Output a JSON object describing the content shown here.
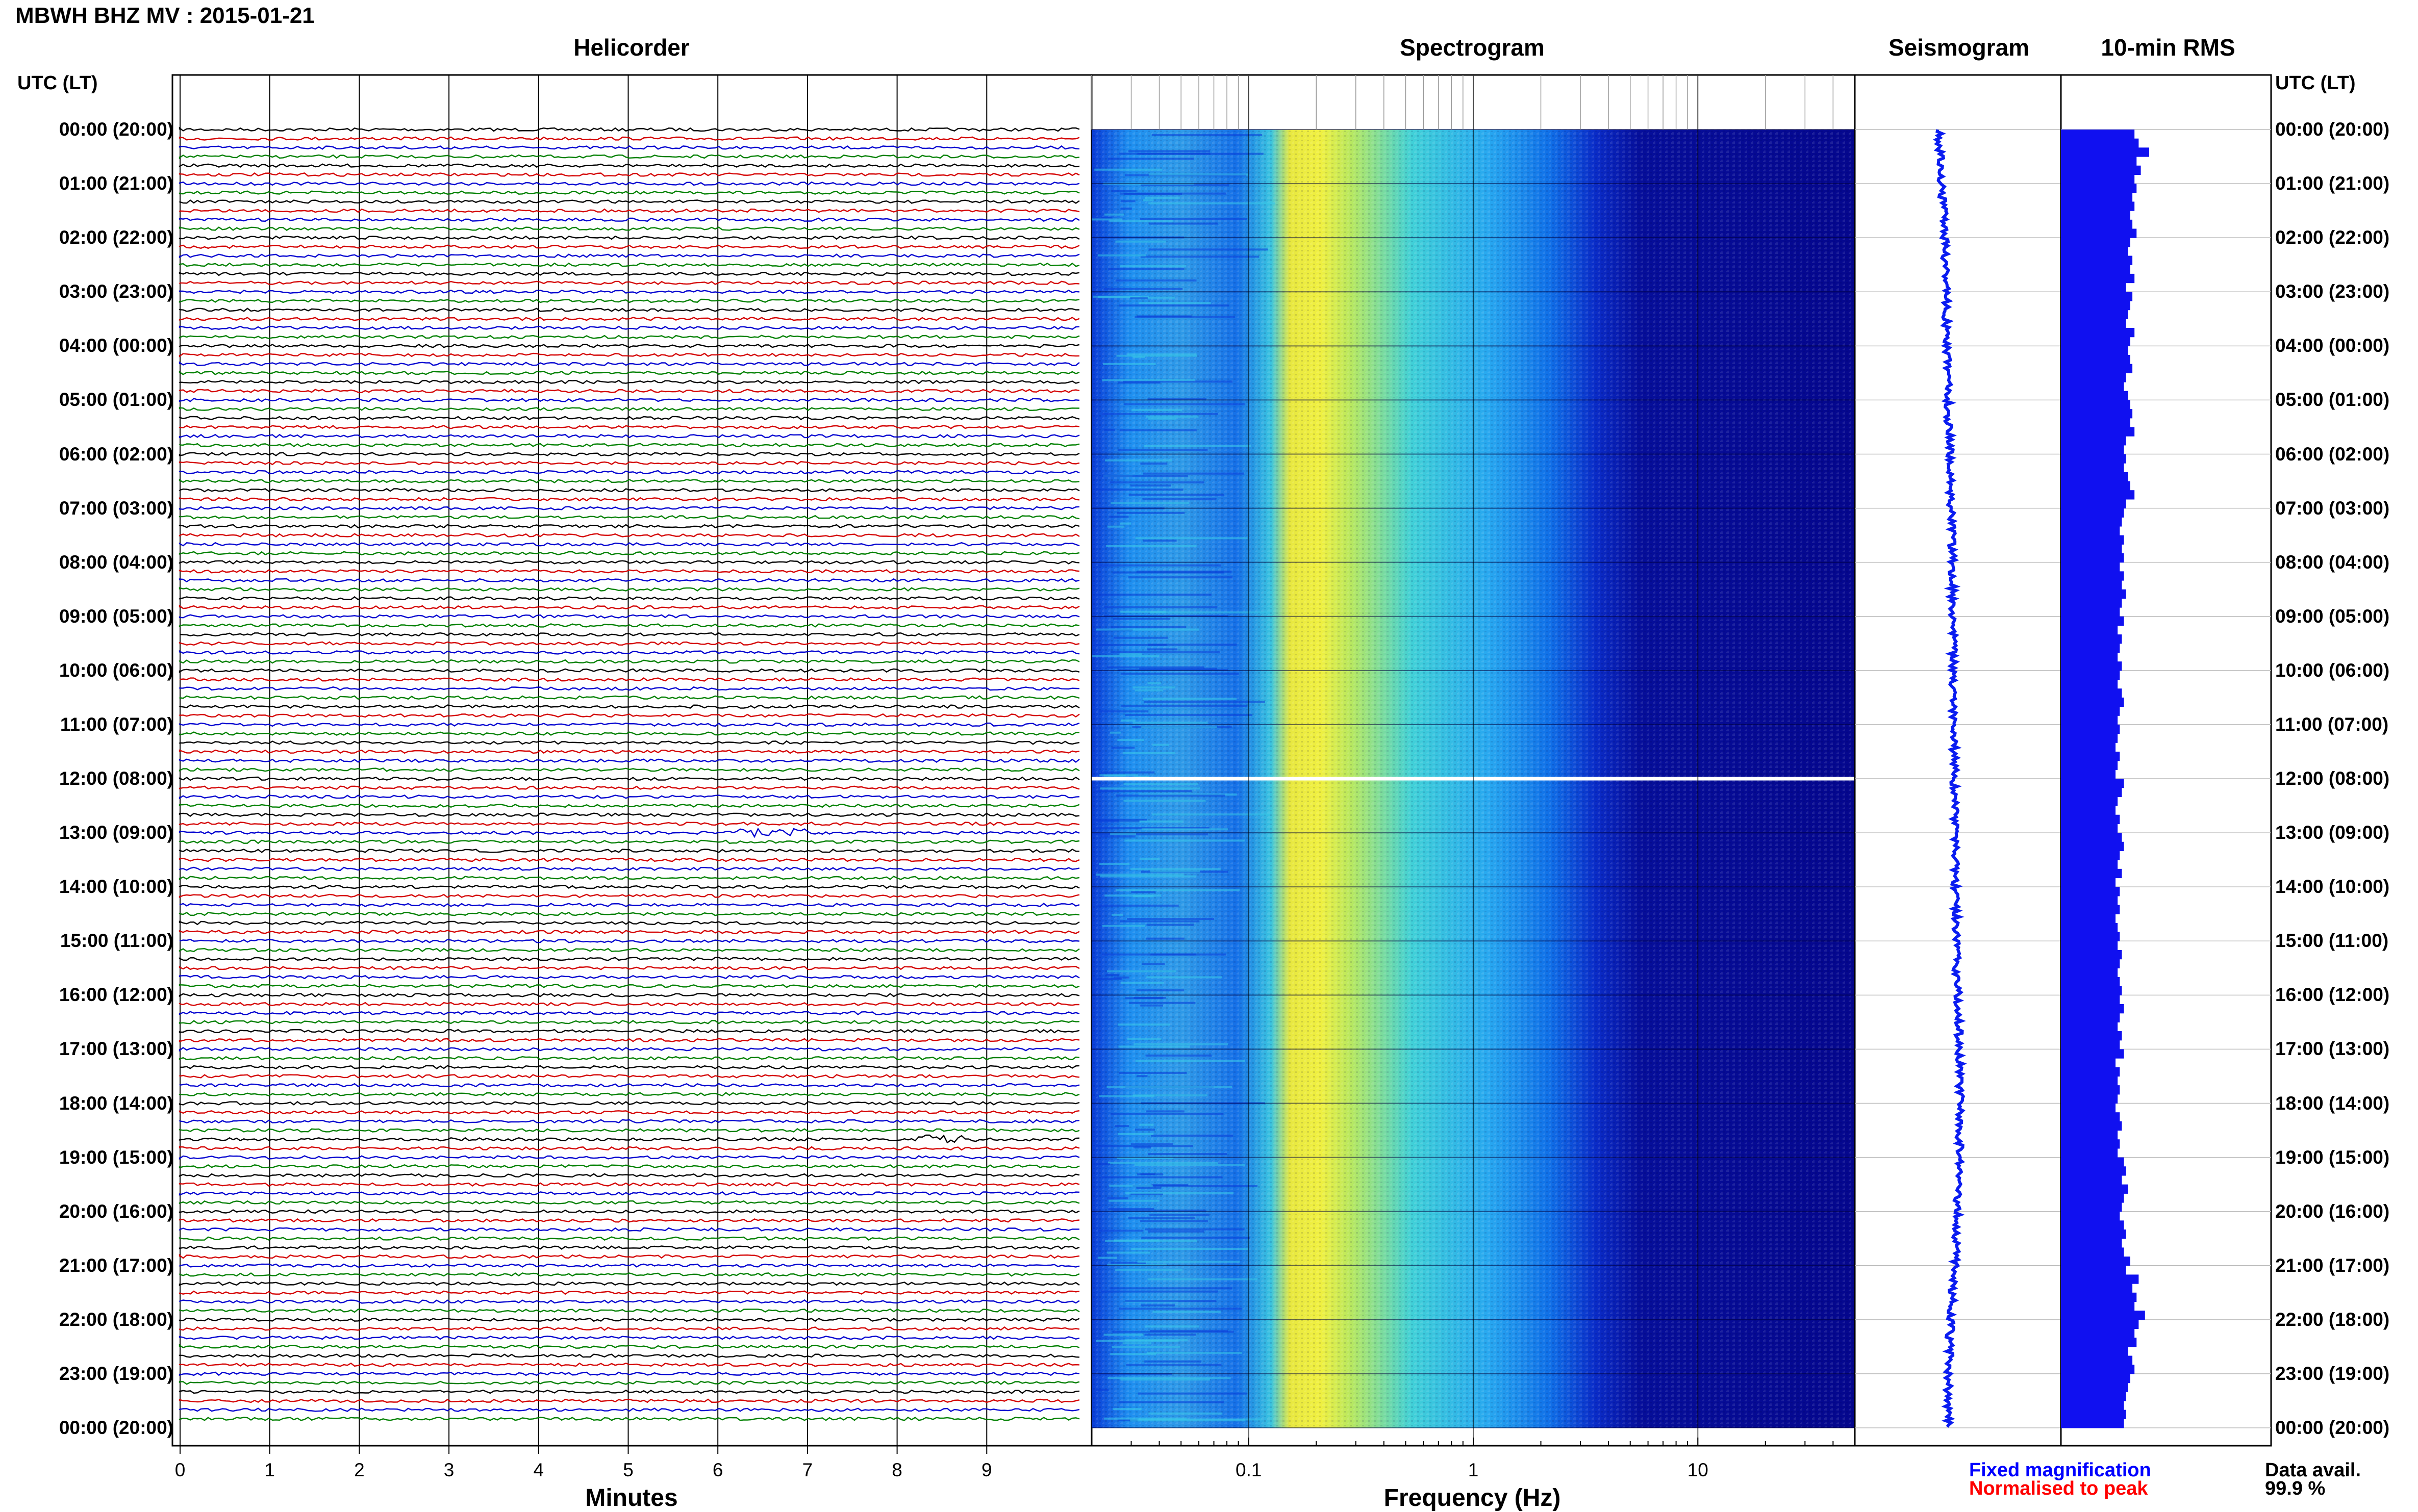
{
  "title": "MBWH BHZ MV : 2015-01-21",
  "panels": {
    "helicorder": "Helicorder",
    "spectrogram": "Spectrogram",
    "seismogram": "Seismogram",
    "rms": "10-min RMS"
  },
  "time_axis_label": "UTC (LT)",
  "time_labels": [
    "00:00 (20:00)",
    "01:00 (21:00)",
    "02:00 (22:00)",
    "03:00 (23:00)",
    "04:00 (00:00)",
    "05:00 (01:00)",
    "06:00 (02:00)",
    "07:00 (03:00)",
    "08:00 (04:00)",
    "09:00 (05:00)",
    "10:00 (06:00)",
    "11:00 (07:00)",
    "12:00 (08:00)",
    "13:00 (09:00)",
    "14:00 (10:00)",
    "15:00 (11:00)",
    "16:00 (12:00)",
    "17:00 (13:00)",
    "18:00 (14:00)",
    "19:00 (15:00)",
    "20:00 (16:00)",
    "21:00 (17:00)",
    "22:00 (18:00)",
    "23:00 (19:00)",
    "00:00 (20:00)"
  ],
  "legend": {
    "fixed": "Fixed magnification",
    "normalised": "Normalised to peak",
    "fixed_color": "#0000ff",
    "normalised_color": "#ff0000"
  },
  "data_availability": {
    "label": "Data avail.",
    "value": "99.9 %"
  },
  "trace_colors": [
    "#000000",
    "#d40000",
    "#0000d0",
    "#008000"
  ],
  "chart_data": [
    {
      "type": "line",
      "title": "Helicorder",
      "xlabel": "Minutes",
      "xticks": [
        "0",
        "1",
        "2",
        "3",
        "4",
        "5",
        "6",
        "7",
        "8",
        "9"
      ],
      "xlim": [
        0,
        10
      ],
      "rows": 144,
      "note_events": [
        {
          "row": 78,
          "minute": 6.6
        },
        {
          "row": 112,
          "minute": 8.5
        }
      ]
    },
    {
      "type": "heatmap",
      "title": "Spectrogram",
      "xlabel": "Frequency (Hz)",
      "xscale": "log",
      "xticks": [
        "0.1",
        "1",
        "10"
      ],
      "xlim": [
        0.02,
        50
      ],
      "peak_frequency_hz": 0.22,
      "data_gap_utc": "12:00"
    },
    {
      "type": "line",
      "title": "Seismogram",
      "xlim": [
        -1,
        1
      ]
    },
    {
      "type": "bar",
      "title": "10-min RMS",
      "values": [
        0.35,
        0.37,
        0.42,
        0.36,
        0.38,
        0.35,
        0.36,
        0.34,
        0.35,
        0.33,
        0.34,
        0.36,
        0.33,
        0.32,
        0.34,
        0.33,
        0.35,
        0.31,
        0.34,
        0.33,
        0.32,
        0.31,
        0.35,
        0.33,
        0.32,
        0.33,
        0.34,
        0.31,
        0.3,
        0.32,
        0.33,
        0.34,
        0.33,
        0.35,
        0.31,
        0.3,
        0.31,
        0.3,
        0.32,
        0.33,
        0.35,
        0.31,
        0.3,
        0.29,
        0.28,
        0.3,
        0.29,
        0.3,
        0.28,
        0.3,
        0.29,
        0.31,
        0.29,
        0.28,
        0.3,
        0.27,
        0.29,
        0.28,
        0.27,
        0.29,
        0.28,
        0.27,
        0.29,
        0.3,
        0.28,
        0.27,
        0.28,
        0.27,
        0.26,
        0.28,
        0.27,
        0.26,
        0.3,
        0.29,
        0.27,
        0.26,
        0.28,
        0.27,
        0.29,
        0.3,
        0.28,
        0.27,
        0.29,
        0.26,
        0.28,
        0.27,
        0.28,
        0.26,
        0.27,
        0.28,
        0.27,
        0.29,
        0.28,
        0.27,
        0.28,
        0.29,
        0.28,
        0.3,
        0.28,
        0.27,
        0.29,
        0.28,
        0.3,
        0.26,
        0.28,
        0.27,
        0.28,
        0.27,
        0.26,
        0.28,
        0.29,
        0.27,
        0.28,
        0.27,
        0.3,
        0.31,
        0.29,
        0.32,
        0.3,
        0.29,
        0.28,
        0.3,
        0.31,
        0.29,
        0.3,
        0.33,
        0.31,
        0.37,
        0.34,
        0.36,
        0.35,
        0.4,
        0.37,
        0.35,
        0.36,
        0.32,
        0.34,
        0.35,
        0.33,
        0.32,
        0.31,
        0.3,
        0.31,
        0.3
      ]
    }
  ]
}
